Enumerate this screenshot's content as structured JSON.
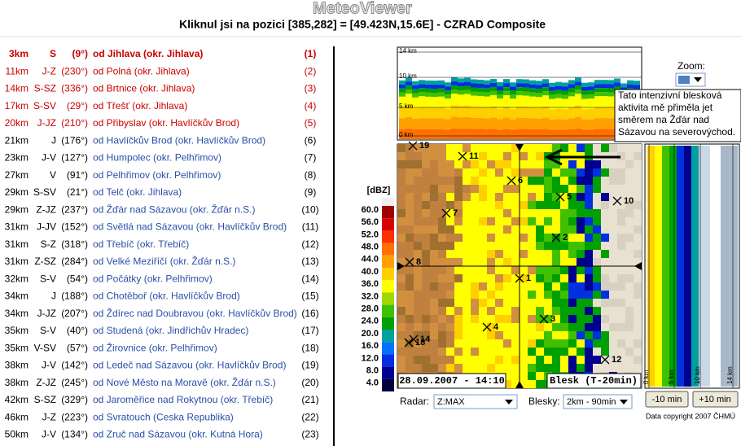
{
  "header": {
    "logo": "MeteoViewer",
    "title": "Kliknul jsi na pozici [385,282] = [49.423N,15.6E] - CZRAD Composite"
  },
  "list": {
    "rows": [
      [
        "3km",
        "S",
        "(9°)",
        "od Jihlava (okr. Jihlava)",
        "(1)"
      ],
      [
        "11km",
        "J-Z",
        "(230°)",
        "od Polná (okr. Jihlava)",
        "(2)"
      ],
      [
        "14km",
        "S-SZ",
        "(336°)",
        "od Brtnice (okr. Jihlava)",
        "(3)"
      ],
      [
        "17km",
        "S-SV",
        "(29°)",
        "od Třešť (okr. Jihlava)",
        "(4)"
      ],
      [
        "20km",
        "J-JZ",
        "(210°)",
        "od Přibyslav (okr. Havlíčkův Brod)",
        "(5)"
      ],
      [
        "21km",
        "J",
        "(176°)",
        "od Havlíčkův Brod (okr. Havlíčkův Brod)",
        "(6)"
      ],
      [
        "23km",
        "J-V",
        "(127°)",
        "od Humpolec (okr. Pelhřimov)",
        "(7)"
      ],
      [
        "27km",
        "V",
        "(91°)",
        "od Pelhřimov (okr. Pelhřimov)",
        "(8)"
      ],
      [
        "29km",
        "S-SV",
        "(21°)",
        "od Telč (okr. Jihlava)",
        "(9)"
      ],
      [
        "29km",
        "Z-JZ",
        "(237°)",
        "od Žďár nad Sázavou (okr. Žďár n.S.)",
        "(10)"
      ],
      [
        "31km",
        "J-JV",
        "(152°)",
        "od Světlá nad Sázavou (okr. Havlíčkův Brod)",
        "(11)"
      ],
      [
        "31km",
        "S-Z",
        "(318°)",
        "od Třebíč (okr. Třebíč)",
        "(12)"
      ],
      [
        "31km",
        "Z-SZ",
        "(284°)",
        "od Velké Meziříčí (okr. Žďár n.S.)",
        "(13)"
      ],
      [
        "32km",
        "S-V",
        "(54°)",
        "od Počátky (okr. Pelhřimov)",
        "(14)"
      ],
      [
        "34km",
        "J",
        "(188°)",
        "od Chotěboř (okr. Havlíčkův Brod)",
        "(15)"
      ],
      [
        "34km",
        "J-JZ",
        "(207°)",
        "od Ždírec nad Doubravou (okr. Havlíčkův Brod)",
        "(16)"
      ],
      [
        "35km",
        "S-V",
        "(40°)",
        "od Studená (okr. Jindřichův Hradec)",
        "(17)"
      ],
      [
        "35km",
        "V-SV",
        "(57°)",
        "od Žirovnice (okr. Pelhřimov)",
        "(18)"
      ],
      [
        "38km",
        "J-V",
        "(142°)",
        "od Ledeč nad Sázavou (okr. Havlíčkův Brod)",
        "(19)"
      ],
      [
        "38km",
        "Z-JZ",
        "(245°)",
        "od Nové Město na Moravě (okr. Žďár n.S.)",
        "(20)"
      ],
      [
        "42km",
        "S-SZ",
        "(329°)",
        "od Jaroměřice nad Rokytnou (okr. Třebíč)",
        "(21)"
      ],
      [
        "46km",
        "J-Z",
        "(223°)",
        "od Svratouch (Ceska Republika)",
        "(22)"
      ],
      [
        "50km",
        "J-V",
        "(134°)",
        "od Zruč nad Sázavou (okr. Kutná Hora)",
        "(23)"
      ]
    ]
  },
  "legend": {
    "unit": "[dBZ]",
    "scale": [
      {
        "label": "60.0",
        "color": "#a00000"
      },
      {
        "label": "56.0",
        "color": "#d80000"
      },
      {
        "label": "52.0",
        "color": "#ff3000"
      },
      {
        "label": "48.0",
        "color": "#ff7000"
      },
      {
        "label": "44.0",
        "color": "#ffa000"
      },
      {
        "label": "40.0",
        "color": "#ffd000"
      },
      {
        "label": "36.0",
        "color": "#ffff00"
      },
      {
        "label": "32.0",
        "color": "#a0d800"
      },
      {
        "label": "28.0",
        "color": "#40c000"
      },
      {
        "label": "24.0",
        "color": "#00a000"
      },
      {
        "label": "20.0",
        "color": "#00a0a0"
      },
      {
        "label": "16.0",
        "color": "#0070ff"
      },
      {
        "label": "12.0",
        "color": "#0030e0"
      },
      {
        "label": "8.0",
        "color": "#000090"
      },
      {
        "label": "4.0",
        "color": "#000040"
      }
    ]
  },
  "profile_top": {
    "labels": [
      "14 km",
      "10 km",
      "5 km",
      "0 km"
    ]
  },
  "profile_right": {
    "labels": [
      "0 km",
      "5 km",
      "10 km",
      "14 km"
    ]
  },
  "map": {
    "markers": [
      "19",
      "11",
      "6",
      "5",
      "10",
      "7",
      "2",
      "8",
      "1",
      "3",
      "4",
      "14",
      "18",
      "12"
    ],
    "timestamp": "28.09.2007 - 14:10",
    "lightning": "Blesk (T-20min)"
  },
  "zoom": {
    "label": "Zoom:"
  },
  "tooltip": {
    "lines": [
      "Tato intenzivní blesková",
      "aktivita mě přiměla jet",
      "směrem na Žďár nad",
      "Sázavou na severovýchod."
    ]
  },
  "controls": {
    "radar_label": "Radar:",
    "radar_value": "Z:MAX",
    "lightning_label": "Blesky:",
    "lightning_value": "2km - 90min",
    "back": "-10 min",
    "forward": "+10 min",
    "copyright": "Data copyright 2007 ČHMÚ"
  }
}
